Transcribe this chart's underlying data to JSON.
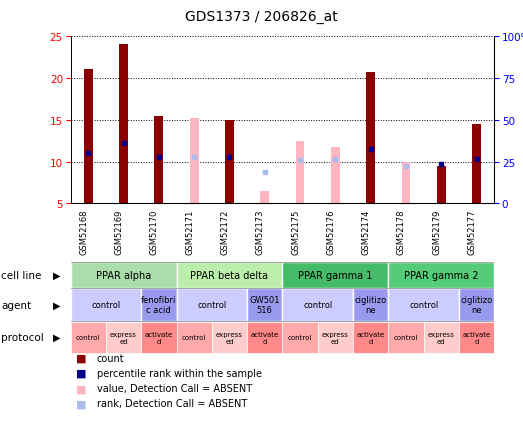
{
  "title": "GDS1373 / 206826_at",
  "samples": [
    "GSM52168",
    "GSM52169",
    "GSM52170",
    "GSM52171",
    "GSM52172",
    "GSM52173",
    "GSM52175",
    "GSM52176",
    "GSM52174",
    "GSM52178",
    "GSM52179",
    "GSM52177"
  ],
  "count_values": [
    21.0,
    24.0,
    15.5,
    null,
    15.0,
    null,
    null,
    null,
    20.7,
    null,
    9.5,
    14.5
  ],
  "rank_values": [
    11.0,
    12.2,
    10.5,
    null,
    10.5,
    null,
    null,
    null,
    11.5,
    null,
    9.7,
    10.3
  ],
  "absent_value": [
    null,
    null,
    null,
    15.2,
    null,
    6.5,
    12.5,
    11.8,
    null,
    10.0,
    null,
    null
  ],
  "absent_rank": [
    null,
    null,
    null,
    10.5,
    null,
    8.7,
    10.2,
    10.3,
    null,
    9.5,
    null,
    null
  ],
  "ylim_left": [
    5,
    25
  ],
  "ylim_right": [
    0,
    100
  ],
  "yticks_left": [
    5,
    10,
    15,
    20,
    25
  ],
  "yticks_right": [
    0,
    25,
    50,
    75,
    100
  ],
  "ytick_right_labels": [
    "0",
    "25",
    "50",
    "75",
    "100%"
  ],
  "color_count": "#8B0000",
  "color_rank": "#00008B",
  "color_absent_value": "#FFB6C1",
  "color_absent_rank": "#AABBEE",
  "bar_width": 0.25,
  "cell_lines": [
    {
      "label": "PPAR alpha",
      "start": 0,
      "end": 3,
      "color": "#AADDAA"
    },
    {
      "label": "PPAR beta delta",
      "start": 3,
      "end": 6,
      "color": "#BBEEAA"
    },
    {
      "label": "PPAR gamma 1",
      "start": 6,
      "end": 9,
      "color": "#44BB66"
    },
    {
      "label": "PPAR gamma 2",
      "start": 9,
      "end": 12,
      "color": "#55CC77"
    }
  ],
  "agents": [
    {
      "label": "control",
      "start": 0,
      "end": 2,
      "color": "#CCCCFF"
    },
    {
      "label": "fenofibri\nc acid",
      "start": 2,
      "end": 3,
      "color": "#9999EE"
    },
    {
      "label": "control",
      "start": 3,
      "end": 5,
      "color": "#CCCCFF"
    },
    {
      "label": "GW501\n516",
      "start": 5,
      "end": 6,
      "color": "#9999EE"
    },
    {
      "label": "control",
      "start": 6,
      "end": 8,
      "color": "#CCCCFF"
    },
    {
      "label": "ciglitizo\nne",
      "start": 8,
      "end": 9,
      "color": "#9999EE"
    },
    {
      "label": "control",
      "start": 9,
      "end": 11,
      "color": "#CCCCFF"
    },
    {
      "label": "ciglitizo\nne",
      "start": 11,
      "end": 12,
      "color": "#9999EE"
    }
  ],
  "protocols": [
    {
      "label": "control",
      "start": 0,
      "end": 1,
      "color": "#FFAAAA"
    },
    {
      "label": "express\ned",
      "start": 1,
      "end": 2,
      "color": "#FFCCCC"
    },
    {
      "label": "activate\nd",
      "start": 2,
      "end": 3,
      "color": "#FF8888"
    },
    {
      "label": "control",
      "start": 3,
      "end": 4,
      "color": "#FFAAAA"
    },
    {
      "label": "express\ned",
      "start": 4,
      "end": 5,
      "color": "#FFCCCC"
    },
    {
      "label": "activate\nd",
      "start": 5,
      "end": 6,
      "color": "#FF8888"
    },
    {
      "label": "control",
      "start": 6,
      "end": 7,
      "color": "#FFAAAA"
    },
    {
      "label": "express\ned",
      "start": 7,
      "end": 8,
      "color": "#FFCCCC"
    },
    {
      "label": "activate\nd",
      "start": 8,
      "end": 9,
      "color": "#FF8888"
    },
    {
      "label": "control",
      "start": 9,
      "end": 10,
      "color": "#FFAAAA"
    },
    {
      "label": "express\ned",
      "start": 10,
      "end": 11,
      "color": "#FFCCCC"
    },
    {
      "label": "activate\nd",
      "start": 11,
      "end": 12,
      "color": "#FF8888"
    }
  ],
  "legend_items": [
    {
      "color": "#8B0000",
      "label": "count"
    },
    {
      "color": "#00008B",
      "label": "percentile rank within the sample"
    },
    {
      "color": "#FFB6C1",
      "label": "value, Detection Call = ABSENT"
    },
    {
      "color": "#AABBEE",
      "label": "rank, Detection Call = ABSENT"
    }
  ]
}
